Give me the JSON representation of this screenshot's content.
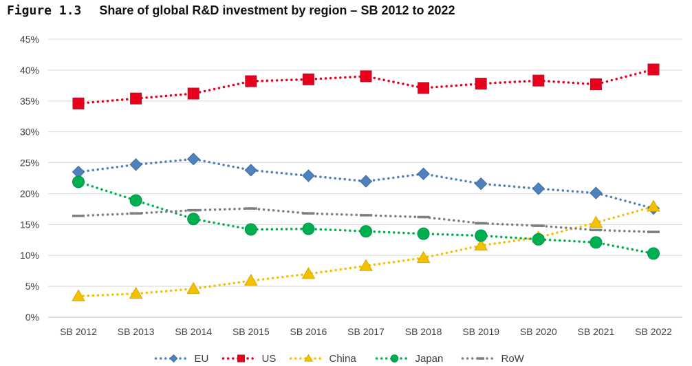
{
  "figure": {
    "number": "Figure 1.3",
    "title": "Share of global R&D investment by region – SB 2012 to 2022"
  },
  "chart_data": {
    "type": "line",
    "title": "Share of global R&D investment by region – SB 2012 to 2022",
    "xlabel": "",
    "ylabel": "",
    "categories": [
      "SB 2012",
      "SB 2013",
      "SB 2014",
      "SB 2015",
      "SB 2016",
      "SB 2017",
      "SB 2018",
      "SB 2019",
      "SB 2020",
      "SB 2021",
      "SB 2022"
    ],
    "ylim": [
      0,
      45
    ],
    "yticks": [
      "0%",
      "5%",
      "10%",
      "15%",
      "20%",
      "25%",
      "30%",
      "35%",
      "40%",
      "45%"
    ],
    "grid": true,
    "legend_position": "bottom",
    "series": [
      {
        "name": "EU",
        "color": "#4F81BD",
        "marker": "diamond",
        "line": "dotted",
        "values": [
          23.5,
          24.7,
          25.6,
          23.8,
          22.9,
          22.0,
          23.2,
          21.6,
          20.8,
          20.1,
          17.6
        ]
      },
      {
        "name": "US",
        "color": "#E8001C",
        "marker": "square",
        "line": "dotted",
        "values": [
          34.6,
          35.4,
          36.2,
          38.2,
          38.5,
          39.0,
          37.1,
          37.8,
          38.3,
          37.7,
          40.1
        ]
      },
      {
        "name": "China",
        "color": "#F5C000",
        "marker": "triangle",
        "line": "dotted",
        "values": [
          3.4,
          3.8,
          4.6,
          5.9,
          7.0,
          8.3,
          9.6,
          11.6,
          12.9,
          15.3,
          17.9
        ]
      },
      {
        "name": "Japan",
        "color": "#00B050",
        "marker": "circle",
        "line": "dotted",
        "values": [
          21.9,
          18.9,
          15.9,
          14.2,
          14.3,
          13.9,
          13.5,
          13.2,
          12.6,
          12.1,
          10.3
        ]
      },
      {
        "name": "RoW",
        "color": "#7F7F7F",
        "marker": "dash",
        "line": "dotted",
        "values": [
          16.4,
          16.8,
          17.3,
          17.6,
          16.8,
          16.5,
          16.2,
          15.2,
          14.8,
          14.1,
          13.8
        ]
      }
    ]
  }
}
